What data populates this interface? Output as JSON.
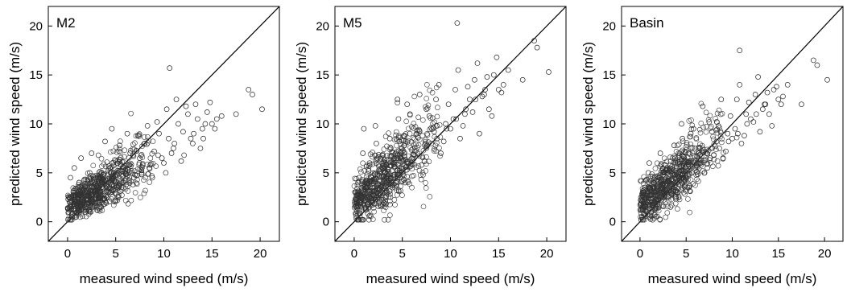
{
  "chart_data": [
    {
      "type": "scatter",
      "title": "M2",
      "xlabel": "measured wind speed (m/s)",
      "ylabel": "predicted wind speed (m/s)",
      "xlim": [
        -2,
        22
      ],
      "ylim": [
        -2,
        22
      ],
      "xticks": [
        0,
        5,
        10,
        15,
        20
      ],
      "yticks": [
        0,
        5,
        10,
        15,
        20
      ],
      "reference_line": "y = x",
      "marker": "open-circle",
      "series": [
        {
          "x": [
            0.2,
            0.4,
            0.6,
            0.8,
            1.0,
            1.2,
            1.5,
            1.8,
            2.0,
            2.3,
            2.6,
            3.0,
            3.3,
            3.6,
            4.0,
            4.4,
            4.8,
            5.2,
            5.6,
            6.0,
            6.5,
            7.0,
            7.5,
            8.0,
            8.5,
            9.0,
            9.5,
            10.0,
            10.5,
            11.0,
            11.5,
            12.0,
            12.5,
            13.0,
            13.5,
            14.0,
            14.5,
            15.0,
            15.5,
            16.0,
            17.5,
            18.8,
            19.2,
            20.2,
            10.6,
            0.3,
            0.5,
            0.7,
            1.1,
            1.4,
            1.7,
            2.1,
            2.5,
            2.8,
            3.2,
            3.5,
            3.9,
            4.2,
            4.6,
            5.0,
            5.4,
            5.8,
            6.2,
            6.8,
            7.3,
            7.8,
            8.3,
            8.8,
            9.3,
            9.8,
            10.3,
            10.8,
            11.3,
            11.8,
            12.3,
            12.8,
            13.3,
            13.8,
            14.3,
            14.8,
            15.3,
            0.1,
            0.9,
            1.6,
            2.4,
            3.1,
            3.8,
            4.5,
            5.3,
            6.1,
            6.9,
            7.7,
            8.6,
            9.4,
            10.2,
            11.1,
            12.1,
            13.1,
            14.1
          ],
          "y": [
            2.0,
            1.5,
            3.0,
            2.5,
            1.0,
            4.0,
            2.2,
            3.5,
            1.8,
            5.0,
            2.8,
            3.2,
            4.5,
            2.0,
            3.8,
            5.5,
            4.2,
            6.0,
            3.5,
            5.2,
            7.0,
            4.8,
            6.5,
            8.0,
            5.5,
            7.2,
            9.0,
            6.0,
            8.5,
            7.5,
            10.0,
            9.2,
            11.0,
            8.0,
            10.5,
            9.5,
            11.2,
            10.0,
            10.5,
            10.8,
            11.0,
            13.5,
            13.0,
            11.5,
            15.7,
            4.5,
            0.8,
            5.5,
            2.8,
            6.5,
            1.2,
            4.2,
            7.0,
            2.5,
            6.8,
            1.5,
            8.2,
            3.0,
            9.5,
            2.2,
            7.8,
            4.0,
            9.0,
            3.8,
            8.8,
            5.8,
            9.8,
            4.5,
            10.2,
            6.5,
            11.5,
            7.0,
            12.5,
            6.2,
            11.8,
            8.5,
            12.0,
            7.5,
            10.0,
            12.2,
            9.5,
            1.0,
            0.5,
            2.0,
            1.0,
            2.0,
            1.8,
            3.0,
            2.5,
            3.8,
            4.5,
            5.0,
            5.8,
            6.8,
            5.0,
            8.0,
            6.8,
            9.0,
            8.5
          ]
        }
      ]
    },
    {
      "type": "scatter",
      "title": "M5",
      "xlabel": "measured wind speed (m/s)",
      "ylabel": "predicted wind speed (m/s)",
      "xlim": [
        -2,
        22
      ],
      "ylim": [
        -2,
        22
      ],
      "xticks": [
        0,
        5,
        10,
        15,
        20
      ],
      "yticks": [
        0,
        5,
        10,
        15,
        20
      ],
      "reference_line": "y = x",
      "marker": "open-circle",
      "series": [
        {
          "x": [
            0.1,
            0.3,
            0.5,
            0.8,
            1.0,
            1.3,
            1.6,
            2.0,
            2.3,
            2.7,
            3.0,
            3.4,
            3.8,
            4.2,
            4.6,
            5.0,
            5.5,
            6.0,
            6.5,
            7.0,
            7.5,
            8.0,
            8.5,
            9.0,
            9.5,
            10.0,
            10.5,
            11.0,
            11.5,
            12.0,
            12.5,
            13.0,
            13.5,
            14.0,
            14.5,
            15.0,
            15.5,
            16.0,
            17.5,
            18.7,
            19.0,
            20.2,
            10.7,
            0.2,
            0.6,
            0.9,
            1.2,
            1.5,
            1.9,
            2.2,
            2.6,
            2.9,
            3.3,
            3.7,
            4.1,
            4.5,
            4.9,
            5.3,
            5.8,
            6.3,
            6.8,
            7.3,
            7.8,
            8.3,
            8.8,
            9.3,
            9.8,
            10.3,
            10.8,
            11.3,
            11.8,
            12.3,
            12.8,
            13.3,
            13.8,
            14.3,
            14.8,
            15.3,
            0.4,
            1.1,
            1.8,
            2.5,
            3.2,
            3.9,
            4.7,
            5.6,
            6.6,
            7.6,
            8.6,
            9.6,
            10.6,
            11.6,
            12.6,
            13.6
          ],
          "y": [
            3.0,
            1.5,
            4.5,
            2.5,
            9.5,
            3.5,
            6.0,
            2.8,
            8.0,
            4.2,
            5.5,
            3.0,
            7.5,
            4.8,
            10.5,
            5.0,
            12.0,
            6.5,
            9.0,
            5.8,
            11.5,
            8.0,
            12.5,
            7.0,
            10.0,
            9.5,
            13.5,
            8.5,
            11.0,
            12.5,
            14.5,
            9.0,
            13.0,
            11.5,
            15.0,
            13.5,
            14.0,
            15.5,
            14.5,
            18.5,
            17.8,
            15.3,
            20.3,
            0.8,
            2.0,
            7.0,
            1.2,
            5.2,
            2.2,
            9.8,
            3.2,
            6.8,
            1.8,
            8.5,
            3.8,
            12.5,
            5.5,
            4.0,
            11.0,
            7.2,
            13.0,
            6.2,
            10.8,
            9.2,
            14.0,
            8.2,
            12.0,
            10.5,
            15.5,
            9.8,
            13.8,
            11.2,
            16.2,
            12.8,
            14.8,
            10.8,
            16.8,
            13.2,
            4.0,
            2.8,
            4.5,
            3.5,
            5.0,
            4.0,
            5.2,
            6.0,
            7.0,
            7.8,
            8.5,
            9.5,
            10.5,
            11.5,
            12.5,
            13.5
          ]
        }
      ]
    },
    {
      "type": "scatter",
      "title": "Basin",
      "xlabel": "measured wind speed (m/s)",
      "ylabel": "predicted wind speed (m/s)",
      "xlim": [
        -2,
        22
      ],
      "ylim": [
        -2,
        22
      ],
      "xticks": [
        0,
        5,
        10,
        15,
        20
      ],
      "yticks": [
        0,
        5,
        10,
        15,
        20
      ],
      "reference_line": "y = x",
      "marker": "open-circle",
      "series": [
        {
          "x": [
            0.1,
            0.3,
            0.5,
            0.8,
            1.0,
            1.3,
            1.6,
            2.0,
            2.3,
            2.7,
            3.0,
            3.4,
            3.8,
            4.2,
            4.6,
            5.0,
            5.5,
            6.0,
            6.5,
            7.0,
            7.5,
            8.0,
            8.5,
            9.0,
            9.5,
            10.0,
            10.5,
            11.0,
            11.5,
            12.0,
            12.5,
            13.0,
            13.5,
            14.0,
            14.5,
            15.0,
            15.5,
            16.0,
            17.5,
            18.8,
            19.2,
            20.3,
            10.8,
            0.2,
            0.6,
            0.9,
            1.2,
            1.5,
            1.9,
            2.2,
            2.6,
            2.9,
            3.3,
            3.7,
            4.1,
            4.5,
            4.9,
            5.3,
            5.8,
            6.3,
            6.8,
            7.3,
            7.8,
            8.3,
            8.8,
            9.3,
            9.8,
            10.3,
            10.8,
            11.3,
            11.8,
            12.3,
            12.8,
            13.3,
            13.8,
            14.3,
            14.8,
            15.3,
            0.4,
            1.1,
            1.8,
            2.5,
            3.2,
            3.9,
            4.7,
            5.6,
            6.6,
            7.6,
            8.6,
            9.6,
            10.6,
            11.6,
            12.6,
            13.6
          ],
          "y": [
            2.5,
            1.2,
            3.5,
            2.0,
            6.0,
            3.0,
            4.5,
            2.2,
            5.8,
            3.2,
            4.2,
            2.8,
            6.5,
            3.8,
            8.5,
            4.5,
            9.0,
            5.5,
            7.5,
            5.0,
            10.2,
            6.8,
            9.8,
            6.5,
            9.0,
            8.5,
            12.5,
            8.0,
            11.0,
            10.5,
            13.0,
            9.2,
            12.0,
            11.0,
            13.5,
            12.5,
            12.8,
            14.0,
            12.0,
            16.5,
            16.0,
            14.5,
            17.5,
            0.5,
            1.5,
            5.0,
            1.0,
            4.0,
            1.8,
            7.0,
            2.5,
            5.5,
            1.5,
            7.8,
            3.0,
            10.0,
            4.2,
            3.5,
            9.5,
            6.0,
            11.8,
            5.5,
            9.2,
            8.2,
            12.5,
            7.2,
            10.8,
            9.5,
            14.0,
            8.8,
            12.2,
            10.2,
            14.8,
            11.5,
            13.2,
            9.8,
            13.8,
            12.0,
            3.0,
            2.0,
            3.5,
            3.0,
            4.0,
            3.2,
            4.5,
            5.0,
            6.0,
            6.5,
            7.5,
            8.2,
            9.0,
            10.0,
            11.0,
            12.0
          ]
        }
      ]
    }
  ]
}
